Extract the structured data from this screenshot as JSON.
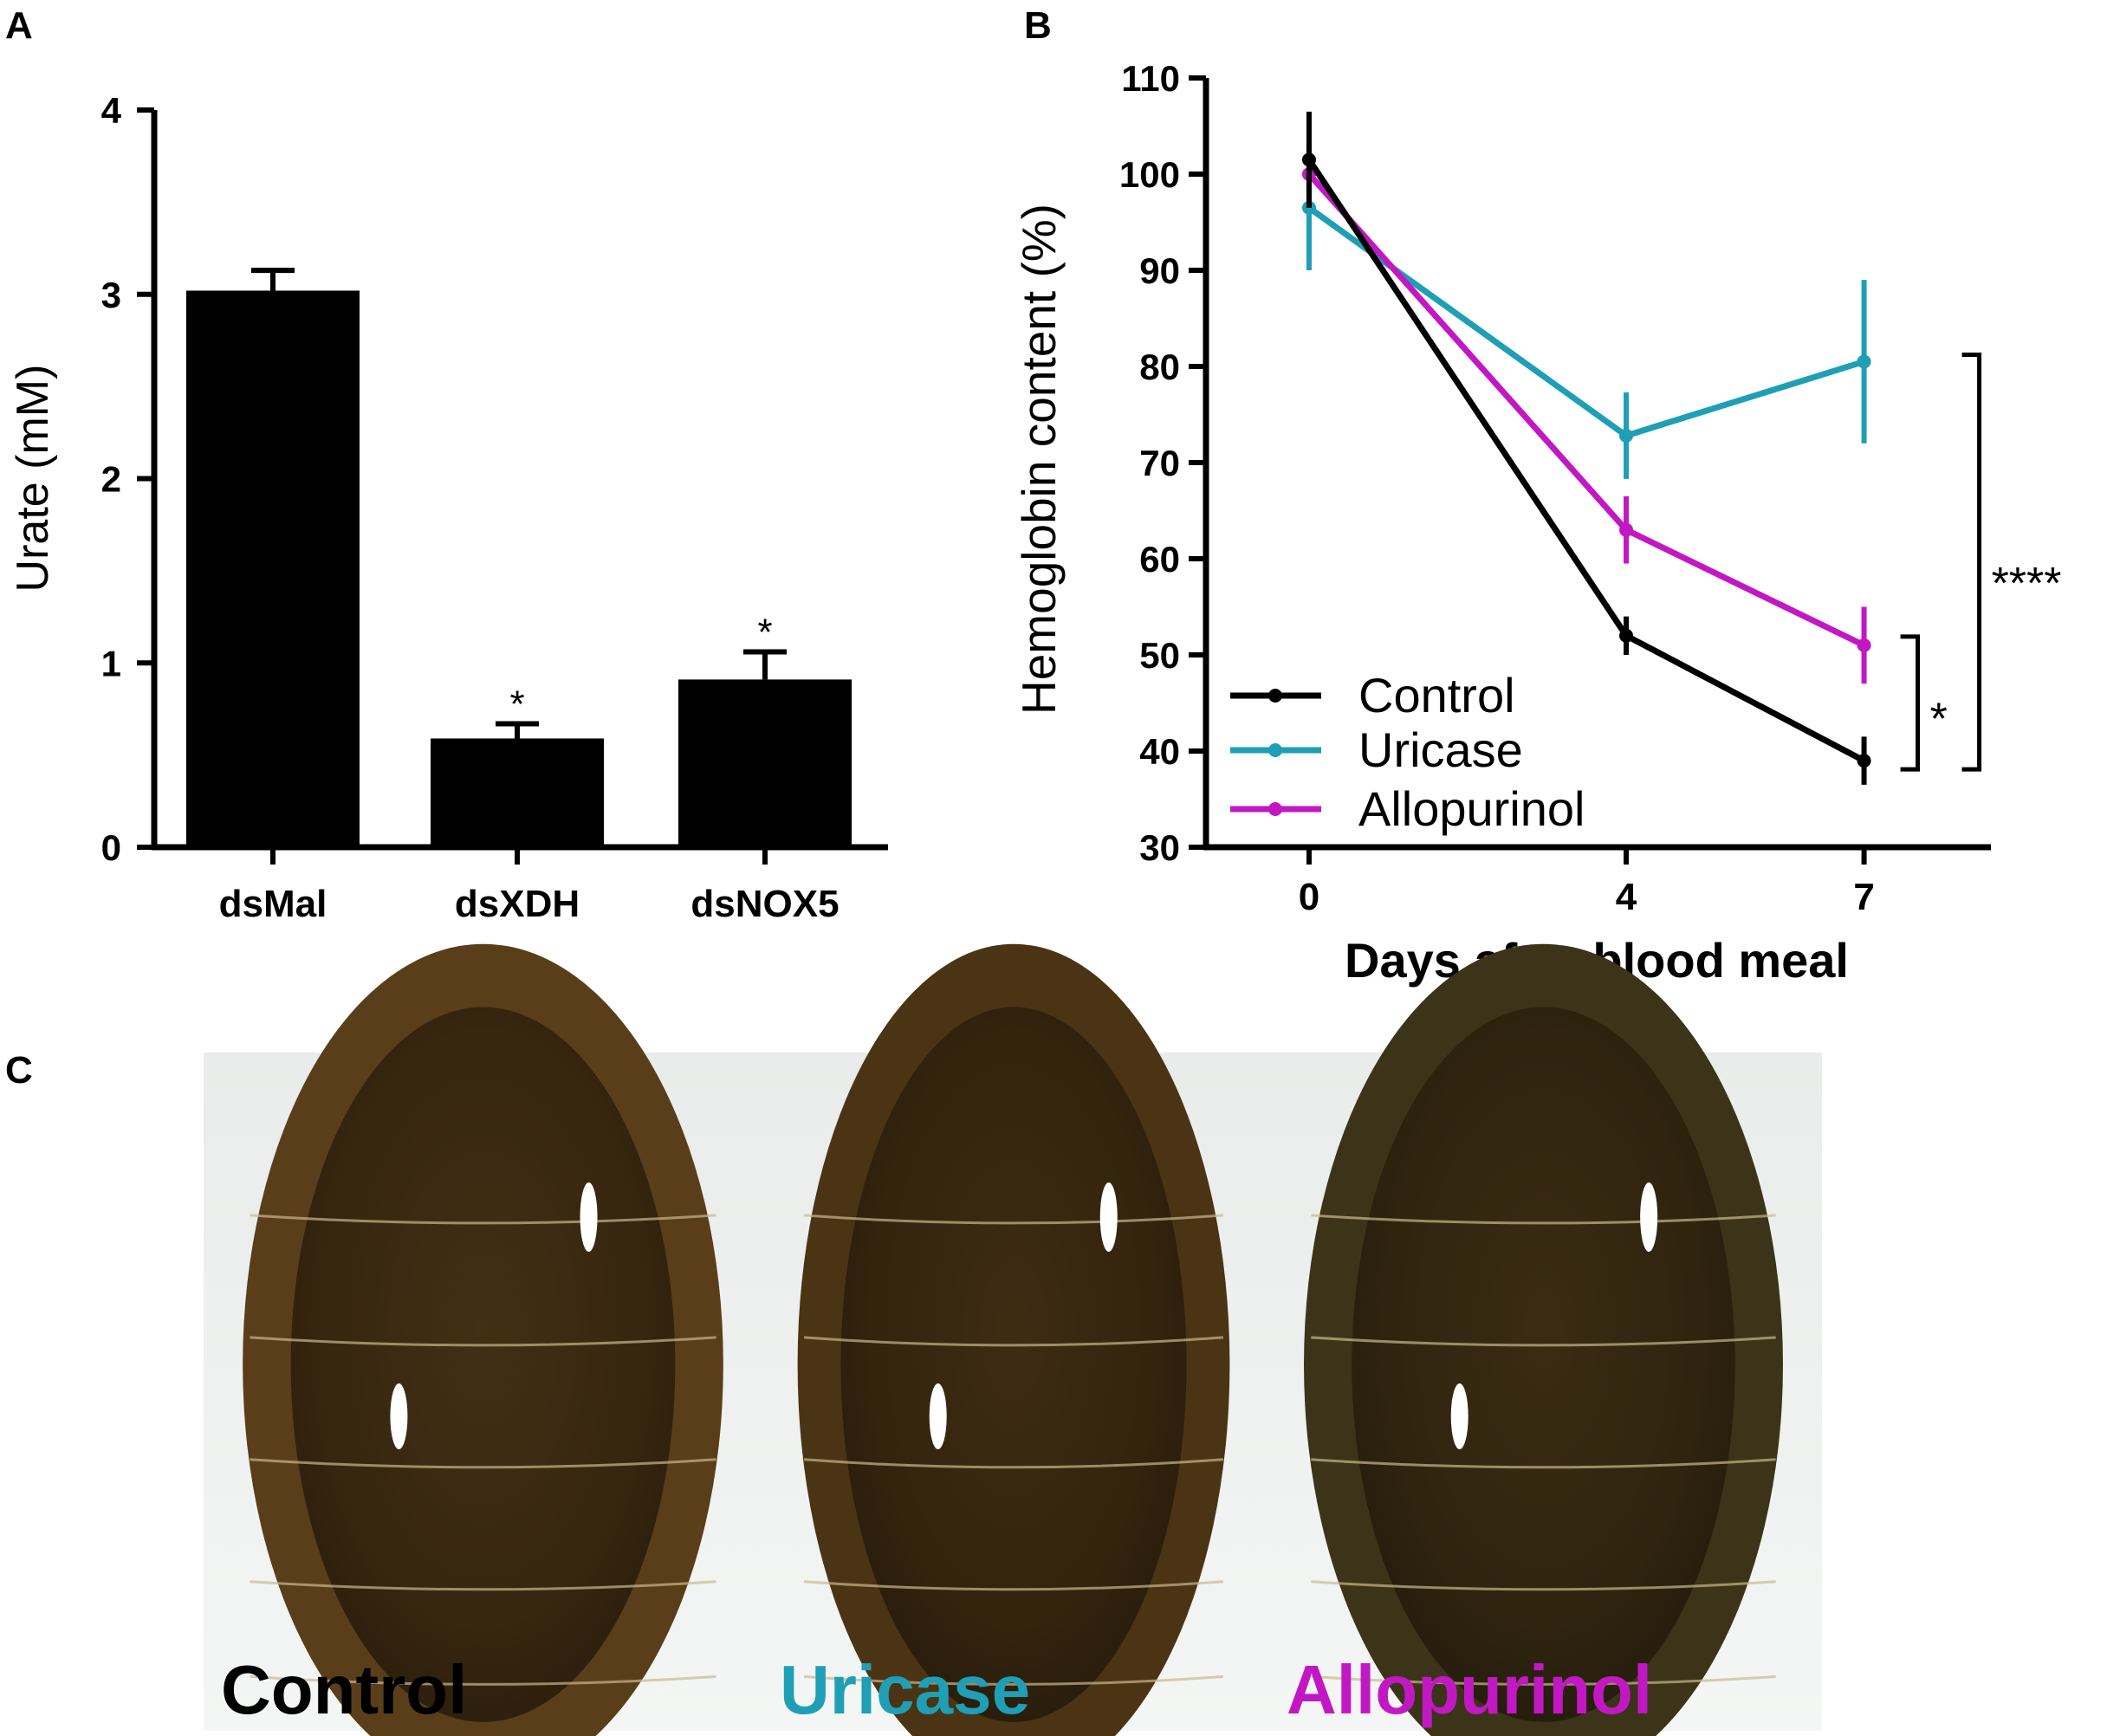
{
  "panels": {
    "a": "A",
    "b": "B",
    "c": "C"
  },
  "chart_data": [
    {
      "type": "bar",
      "ylabel": "Urate (mM)",
      "ylim": [
        0,
        4
      ],
      "yticks": [
        "0",
        "1",
        "2",
        "3",
        "4"
      ],
      "categories": [
        "dsMal",
        "dsXDH",
        "dsNOX5"
      ],
      "values": [
        3.02,
        0.59,
        0.91
      ],
      "errors": [
        0.11,
        0.08,
        0.15
      ],
      "annotations": [
        "",
        "*",
        "*"
      ],
      "color": "#000000"
    },
    {
      "type": "line",
      "xlabel": "Days after blood meal",
      "ylabel": "Hemoglobin content (%)",
      "x": [
        0,
        4,
        7
      ],
      "xticks": [
        "0",
        "4",
        "7"
      ],
      "xlim": [
        -1.3,
        8.6
      ],
      "ylim": [
        30,
        110
      ],
      "yticks": [
        "30",
        "40",
        "50",
        "60",
        "70",
        "80",
        "90",
        "100",
        "110"
      ],
      "legend_position": "bottom-left",
      "series": [
        {
          "name": "Control",
          "color": "#000000",
          "values": [
            101.5,
            52,
            39
          ],
          "errors": [
            5,
            2,
            2.5
          ]
        },
        {
          "name": "Uricase",
          "color": "#1e9fb5",
          "values": [
            96.5,
            72.8,
            80.5
          ],
          "errors": [
            6.5,
            4.5,
            8.5
          ]
        },
        {
          "name": "Allopurinol",
          "color": "#c218c4",
          "values": [
            100,
            63,
            51
          ],
          "errors": [
            3,
            3.5,
            4
          ]
        }
      ],
      "significance": [
        {
          "between": [
            "Allopurinol",
            "Control"
          ],
          "label": "*"
        },
        {
          "between": [
            "Uricase",
            "Control"
          ],
          "label": "****"
        }
      ]
    }
  ],
  "photos": [
    {
      "label": "Control",
      "color": "#000000",
      "tint": "#5a3e1a"
    },
    {
      "label": "Uricase",
      "color": "#1e9fb5",
      "tint": "#4a3414"
    },
    {
      "label": "Allopurinol",
      "color": "#c218c4",
      "tint": "#3c3418"
    }
  ]
}
